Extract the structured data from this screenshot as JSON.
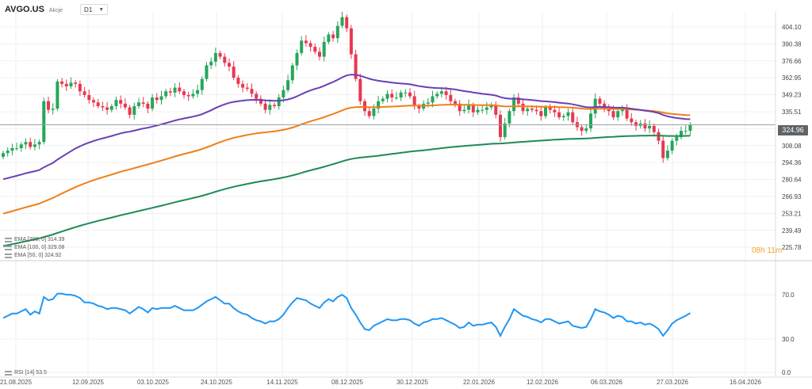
{
  "header": {
    "symbol": "AVGO.US",
    "symbol_type": "Akcje",
    "timeframe": "D1"
  },
  "indicators": {
    "ema200": "EMA [200, 0] 314.39",
    "ema100": "EMA [100, 0] 329.08",
    "ema50": "EMA [50, 0] 324.92",
    "rsi": "RSI [14] 53.5"
  },
  "current_price": "324.96",
  "countdown": "08h 11m",
  "colors": {
    "up": "#26a65b",
    "down": "#e8384f",
    "ema50": "#6a3fb5",
    "ema100": "#f07f18",
    "ema200": "#1f8a55",
    "rsi": "#2196f3"
  },
  "chart_data": [
    {
      "type": "candlestick",
      "title": "AVGO.US D1",
      "y_ticks": [
        404.1,
        390.38,
        376.66,
        362.95,
        349.23,
        335.51,
        321.79,
        308.08,
        294.36,
        280.64,
        266.93,
        253.21,
        239.49,
        225.78
      ],
      "x_tick_labels": [
        "21.08.2025",
        "12.09.2025",
        "03.10.2025",
        "24.10.2025",
        "14.11.2025",
        "08.12.2025",
        "30.12.2025",
        "22.01.2026",
        "12.02.2026",
        "06.03.2026",
        "27.03.2026",
        "16.04.2026"
      ],
      "ylim": [
        225.78,
        411
      ],
      "current_price": 324.96,
      "series": [
        {
          "name": "EMA [50, 0]",
          "last": 324.92
        },
        {
          "name": "EMA [100, 0]",
          "last": 329.08
        },
        {
          "name": "EMA [200, 0]",
          "last": 314.39
        }
      ],
      "close_approx": [
        302,
        304,
        306,
        306,
        309,
        311,
        307,
        309,
        311,
        344,
        337,
        338,
        360,
        358,
        356,
        359,
        358,
        352,
        349,
        345,
        343,
        340,
        339,
        337,
        340,
        345,
        342,
        339,
        333,
        340,
        343,
        342,
        338,
        347,
        345,
        348,
        352,
        351,
        355,
        352,
        349,
        348,
        350,
        353,
        362,
        373,
        376,
        383,
        380,
        375,
        372,
        363,
        358,
        355,
        354,
        350,
        346,
        342,
        337,
        341,
        340,
        347,
        353,
        361,
        373,
        383,
        393,
        391,
        388,
        384,
        380,
        392,
        398,
        395,
        405,
        412,
        403,
        382,
        362,
        344,
        336,
        332,
        338,
        344,
        346,
        350,
        347,
        347,
        351,
        351,
        348,
        340,
        338,
        342,
        343,
        348,
        350,
        352,
        349,
        344,
        342,
        336,
        337,
        341,
        335,
        337,
        337,
        339,
        341,
        333,
        315,
        326,
        336,
        347,
        342,
        336,
        338,
        337,
        336,
        332,
        339,
        337,
        335,
        331,
        332,
        335,
        327,
        323,
        320,
        322,
        334,
        346,
        342,
        338,
        336,
        331,
        336,
        338,
        330,
        327,
        324,
        326,
        322,
        324,
        319,
        312,
        298,
        304,
        312,
        315,
        320,
        320,
        324.96
      ]
    },
    {
      "type": "line",
      "title": "RSI [14]",
      "y_ticks": [
        70.0,
        30.0,
        0.0
      ],
      "ylim": [
        0,
        90
      ],
      "series": [
        {
          "name": "RSI [14]",
          "last": 53.5,
          "values": [
            49,
            51,
            53,
            53,
            55,
            57,
            52,
            55,
            53,
            68,
            65,
            66,
            71,
            71,
            70,
            70,
            69,
            67,
            63,
            63,
            62,
            60,
            59,
            57,
            58,
            58,
            57,
            56,
            53,
            56,
            59,
            57,
            54,
            58,
            57,
            58,
            58,
            58,
            60,
            58,
            56,
            56,
            56,
            58,
            61,
            64,
            66,
            68,
            65,
            62,
            62,
            58,
            55,
            53,
            52,
            49,
            47,
            46,
            44,
            46,
            46,
            48,
            52,
            58,
            63,
            67,
            66,
            65,
            62,
            60,
            58,
            63,
            66,
            64,
            68,
            70,
            67,
            58,
            52,
            45,
            39,
            38,
            42,
            44,
            46,
            48,
            47,
            47,
            48,
            48,
            47,
            44,
            42,
            45,
            46,
            48,
            48,
            49,
            47,
            45,
            43,
            40,
            41,
            45,
            42,
            43,
            43,
            44,
            45,
            41,
            33,
            41,
            48,
            57,
            54,
            51,
            50,
            48,
            47,
            45,
            48,
            48,
            46,
            44,
            45,
            46,
            42,
            41,
            40,
            41,
            48,
            57,
            55,
            54,
            52,
            49,
            51,
            50,
            46,
            46,
            44,
            45,
            43,
            44,
            42,
            39,
            33,
            38,
            44,
            47,
            49,
            51,
            53.5
          ]
        }
      ]
    }
  ]
}
